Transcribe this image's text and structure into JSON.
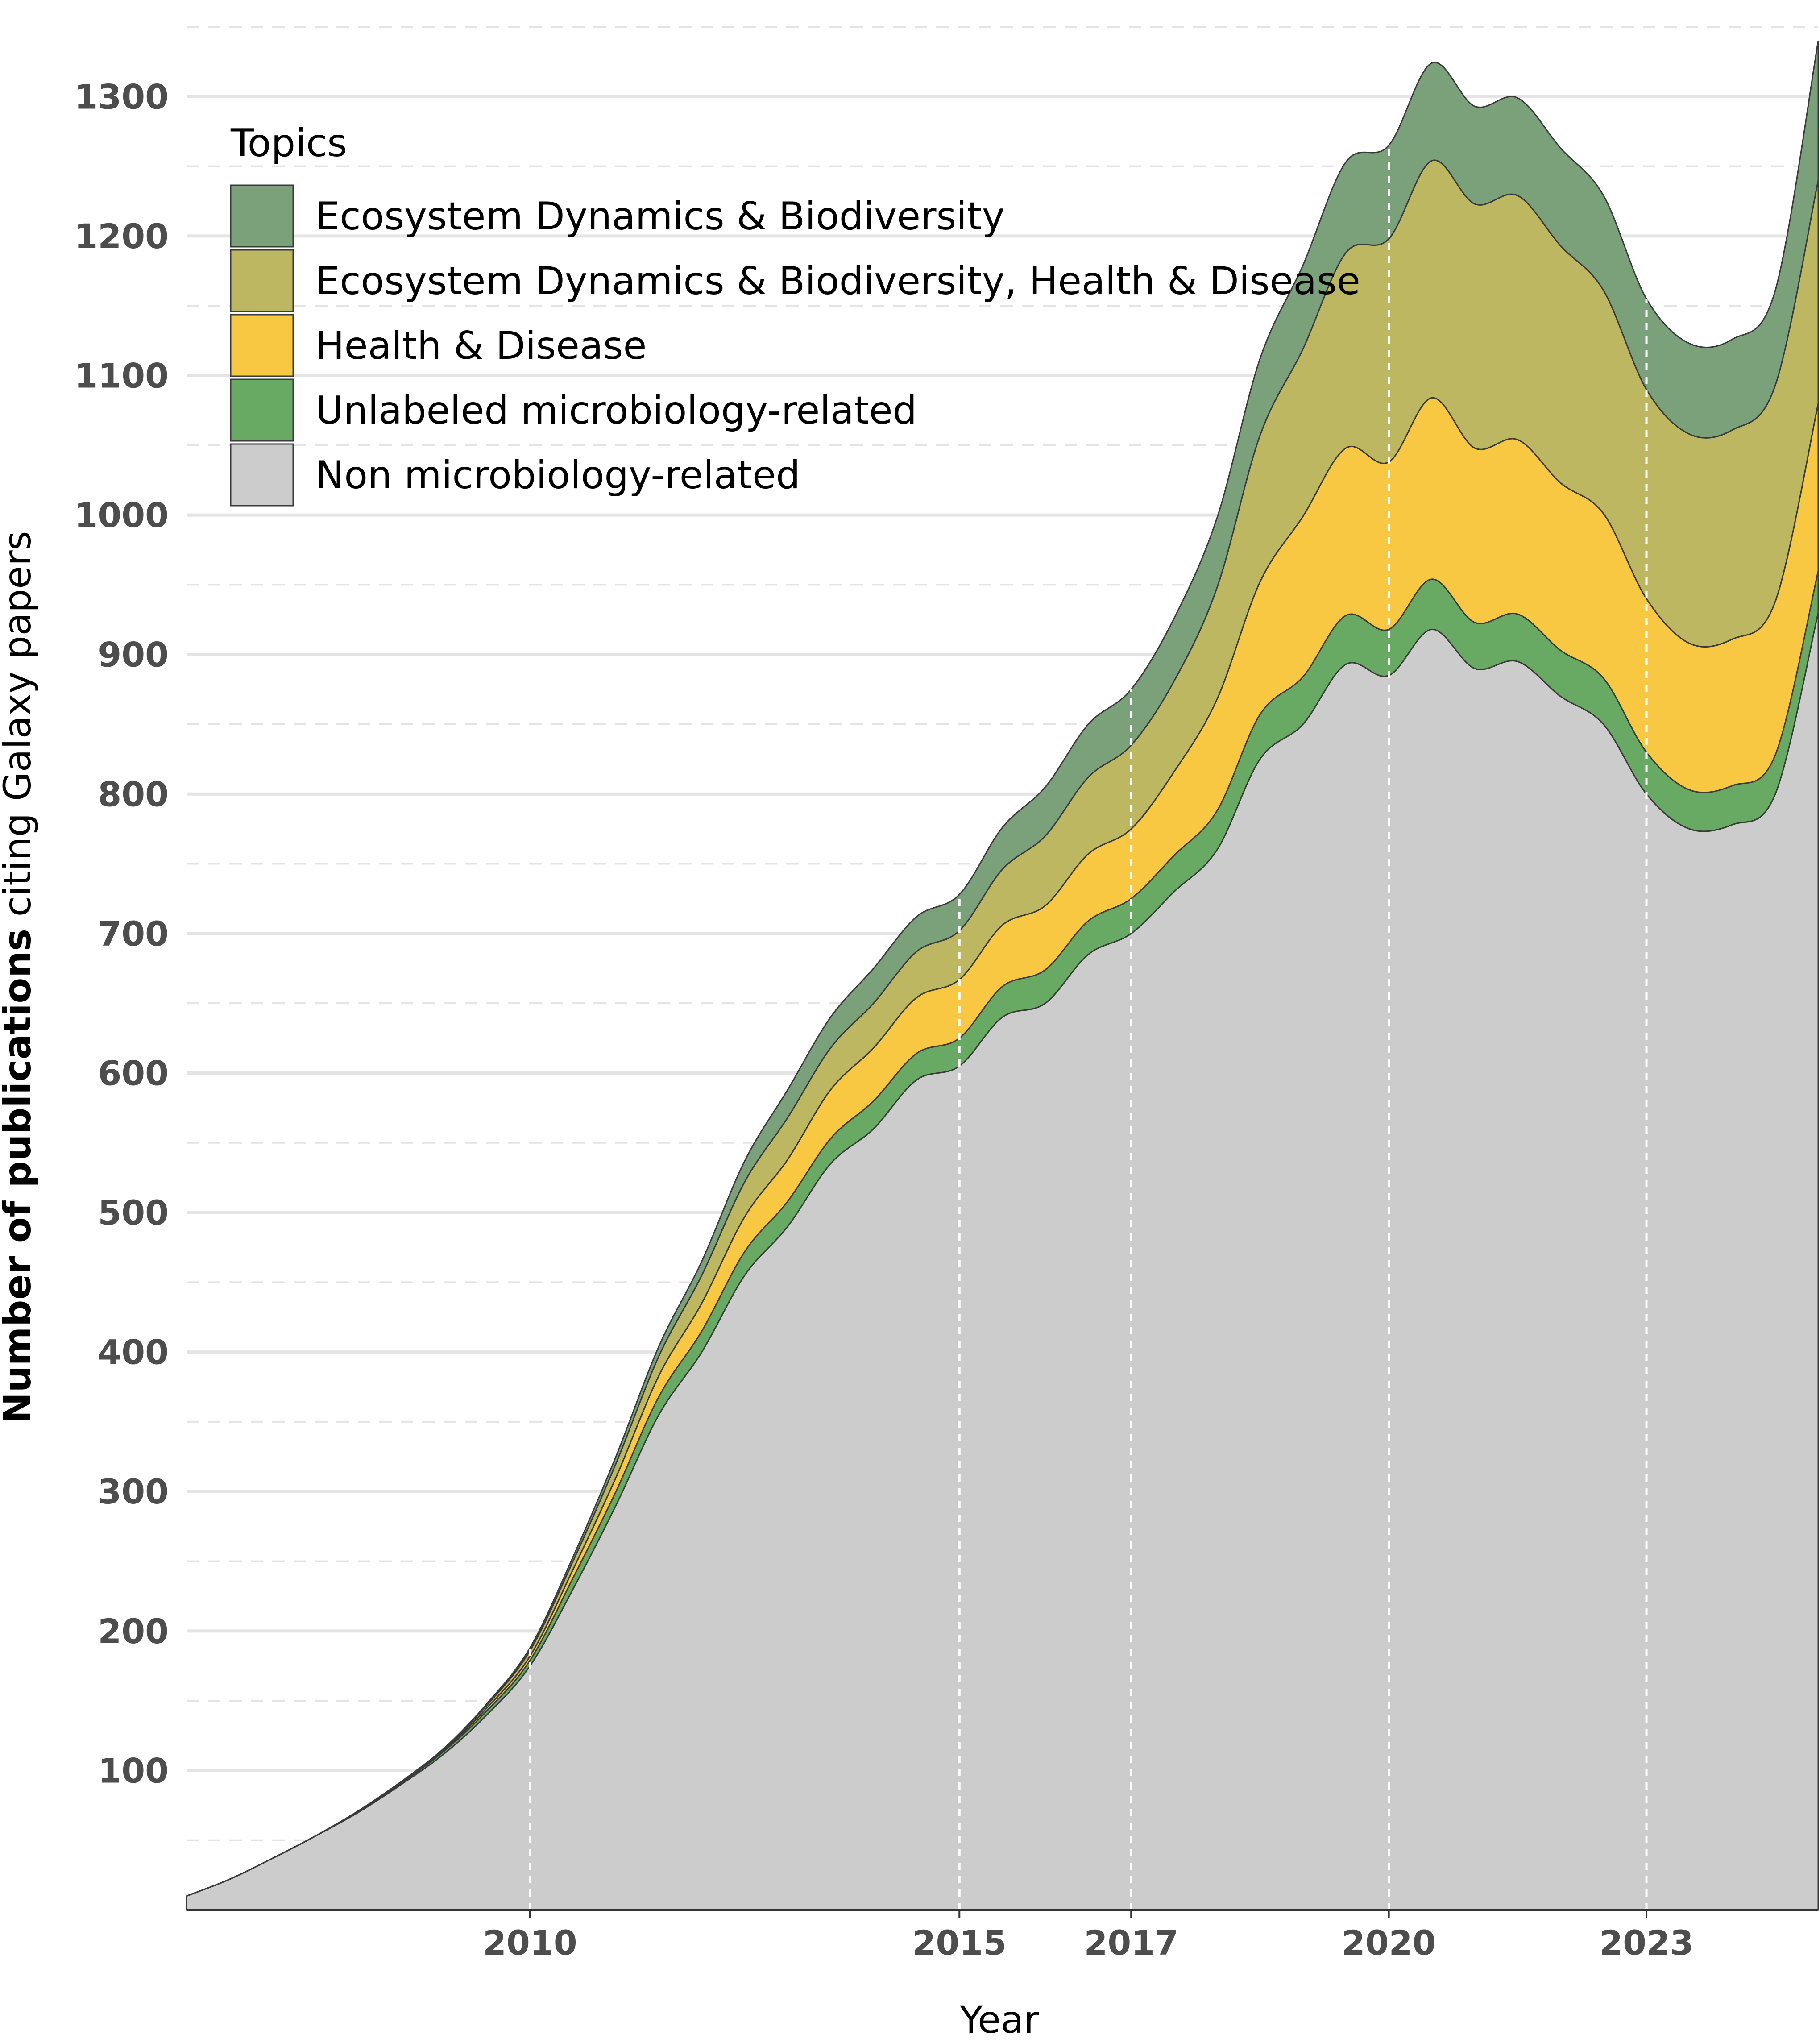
{
  "chart_data": {
    "type": "area",
    "stacked": true,
    "xlabel": "Year",
    "ylabel_bold": "Number of publications",
    "ylabel_rest": " citing Galaxy papers",
    "xlim": [
      2006,
      2025
    ],
    "ylim": [
      0,
      1350
    ],
    "yticks": [
      100,
      200,
      300,
      400,
      500,
      600,
      700,
      800,
      900,
      1000,
      1100,
      1200,
      1300
    ],
    "xticks": [
      2010,
      2015,
      2017,
      2020,
      2023
    ],
    "highlight_years": [
      2010,
      2015,
      2017,
      2020,
      2023
    ],
    "legend": {
      "title": "Topics",
      "position": "top-left",
      "items": [
        {
          "label": "Ecosystem Dynamics & Biodiversity",
          "color": "#7ba17a"
        },
        {
          "label": "Ecosystem Dynamics & Biodiversity, Health & Disease",
          "color": "#bdb761"
        },
        {
          "label": "Health & Disease",
          "color": "#f9c842"
        },
        {
          "label": "Unlabeled microbiology-related",
          "color": "#68aa63"
        },
        {
          "label": "Non microbiology-related",
          "color": "#cccccc"
        }
      ]
    },
    "x": [
      2006,
      2006.5,
      2007,
      2007.5,
      2008,
      2008.5,
      2009,
      2009.5,
      2010,
      2010.5,
      2011,
      2011.5,
      2012,
      2012.5,
      2013,
      2013.5,
      2014,
      2014.5,
      2015,
      2015.5,
      2016,
      2016.5,
      2017,
      2017.5,
      2018,
      2018.5,
      2019,
      2019.5,
      2020,
      2020.5,
      2021,
      2021.5,
      2022,
      2022.5,
      2023,
      2023.5,
      2024,
      2024.5,
      2025
    ],
    "series": [
      {
        "name": "Non microbiology-related",
        "color": "#cccccc",
        "values": [
          10,
          22,
          37,
          53,
          70,
          90,
          112,
          140,
          175,
          230,
          290,
          355,
          400,
          455,
          490,
          535,
          560,
          595,
          605,
          640,
          650,
          685,
          700,
          730,
          760,
          825,
          850,
          893,
          885,
          918,
          890,
          895,
          870,
          850,
          800,
          775,
          778,
          800,
          930
        ]
      },
      {
        "name": "Unlabeled microbiology-related",
        "color": "#68aa63",
        "values": [
          0,
          0,
          0,
          0,
          1,
          1,
          2,
          3,
          4,
          8,
          10,
          13,
          15,
          17,
          18,
          18,
          20,
          19,
          20,
          22,
          24,
          24,
          25,
          26,
          28,
          32,
          34,
          35,
          33,
          36,
          33,
          34,
          33,
          33,
          30,
          28,
          28,
          28,
          30
        ]
      },
      {
        "name": "Health & Disease",
        "color": "#f9c842",
        "values": [
          0,
          0,
          0,
          0,
          0,
          1,
          1,
          2,
          3,
          6,
          10,
          15,
          20,
          25,
          30,
          35,
          38,
          40,
          42,
          44,
          46,
          48,
          50,
          60,
          80,
          95,
          115,
          120,
          120,
          130,
          125,
          125,
          120,
          118,
          110,
          105,
          105,
          110,
          120
        ]
      },
      {
        "name": "Ecosystem Dynamics & Biodiversity, Health & Disease",
        "color": "#bdb761",
        "values": [
          0,
          0,
          0,
          0,
          0,
          0,
          1,
          2,
          4,
          6,
          10,
          14,
          20,
          25,
          30,
          30,
          32,
          33,
          35,
          40,
          50,
          55,
          60,
          65,
          80,
          105,
          120,
          140,
          160,
          170,
          175,
          175,
          170,
          160,
          150,
          150,
          150,
          155,
          160
        ]
      },
      {
        "name": "Ecosystem Dynamics & Biodiversity",
        "color": "#7ba17a",
        "values": [
          0,
          0,
          0,
          0,
          0,
          0,
          0,
          1,
          2,
          3,
          5,
          7,
          10,
          15,
          20,
          22,
          25,
          25,
          26,
          30,
          35,
          38,
          40,
          45,
          50,
          55,
          60,
          65,
          67,
          70,
          70,
          70,
          70,
          68,
          65,
          65,
          65,
          68,
          100
        ]
      }
    ]
  }
}
